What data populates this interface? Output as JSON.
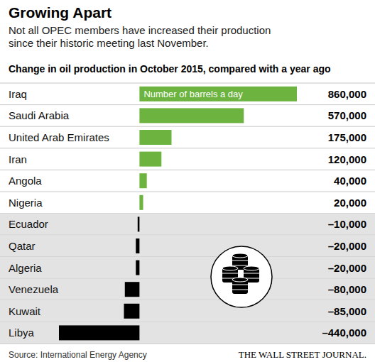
{
  "chart_data": {
    "type": "bar",
    "orientation": "horizontal",
    "title": "Growing Apart",
    "subtitle": [
      "Not all OPEC members have increased their production",
      "since their historic meeting last November."
    ],
    "heading": "Change in oil production in October 2015, compared with a year ago",
    "annotation": "Number of barrels a day",
    "source": "Source: International Energy Agency",
    "credit": "THE WALL STREET JOURNAL.",
    "categories": [
      "Iraq",
      "Saudi Arabia",
      "United Arab Emirates",
      "Iran",
      "Angola",
      "Nigeria",
      "Ecuador",
      "Qatar",
      "Algeria",
      "Venezuela",
      "Kuwait",
      "Libya"
    ],
    "values": [
      860000,
      570000,
      175000,
      120000,
      40000,
      20000,
      -10000,
      -20000,
      -20000,
      -80000,
      -85000,
      -440000
    ],
    "value_labels": [
      "860,000",
      "570,000",
      "175,000",
      "120,000",
      "40,000",
      "20,000",
      "–10,000",
      "–20,000",
      "–20,000",
      "–80,000",
      "–85,000",
      "–440,000"
    ],
    "colors": [
      "#6db33f",
      "#6db33f",
      "#6db33f",
      "#6db33f",
      "#6db33f",
      "#6db33f",
      "#000000",
      "#000000",
      "#000000",
      "#000000",
      "#000000",
      "#000000"
    ],
    "xlim": [
      -440000,
      860000
    ],
    "data_labels": true,
    "tick_labels": false,
    "grid": false
  }
}
